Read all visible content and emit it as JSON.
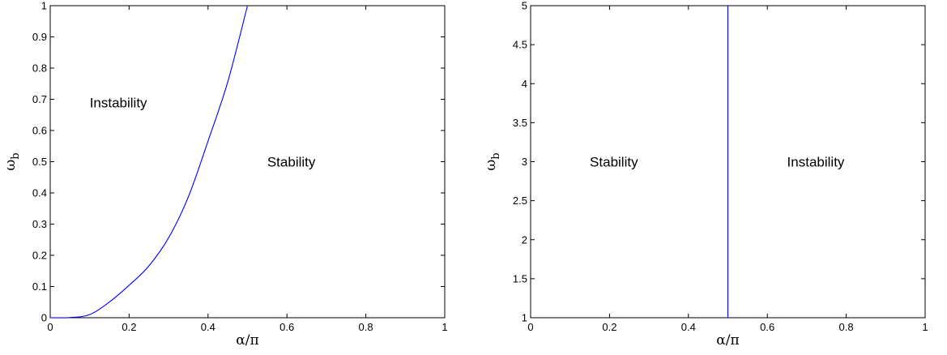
{
  "chart_data": [
    {
      "type": "line",
      "xlabel": "α/π",
      "ylabel_main": "ω",
      "ylabel_sub": "b",
      "xlim": [
        0,
        1
      ],
      "ylim": [
        0,
        1
      ],
      "xticks": [
        0,
        0.2,
        0.4,
        0.6,
        0.8,
        1
      ],
      "xtick_labels": [
        "0",
        "0.2",
        "0.4",
        "0.6",
        "0.8",
        "1"
      ],
      "yticks": [
        0,
        0.1,
        0.2,
        0.3,
        0.4,
        0.5,
        0.6,
        0.7,
        0.8,
        0.9,
        1
      ],
      "ytick_labels": [
        "0",
        "0.1",
        "0.2",
        "0.3",
        "0.4",
        "0.5",
        "0.6",
        "0.7",
        "0.8",
        "0.9",
        "1"
      ],
      "grid": false,
      "series": [
        {
          "color": "#0000ff",
          "x": [
            0,
            0.05,
            0.1,
            0.15,
            0.2,
            0.25,
            0.3,
            0.35,
            0.4,
            0.45,
            0.5
          ],
          "y": [
            0,
            0.0006,
            0.01,
            0.0505,
            0.104,
            0.166,
            0.256,
            0.387,
            0.566,
            0.756,
            1.0
          ]
        }
      ],
      "annotations": [
        {
          "text": "Instability",
          "x": 0.1,
          "y": 0.69
        },
        {
          "text": "Stability",
          "x": 0.55,
          "y": 0.5
        }
      ]
    },
    {
      "type": "line",
      "xlabel": "α/π",
      "ylabel_main": "ω",
      "ylabel_sub": "b",
      "xlim": [
        0,
        1
      ],
      "ylim": [
        1,
        5
      ],
      "xticks": [
        0,
        0.2,
        0.4,
        0.6,
        0.8,
        1
      ],
      "xtick_labels": [
        "0",
        "0.2",
        "0.4",
        "0.6",
        "0.8",
        "1"
      ],
      "yticks": [
        1,
        1.5,
        2,
        2.5,
        3,
        3.5,
        4,
        4.5,
        5
      ],
      "ytick_labels": [
        "1",
        "1.5",
        "2",
        "2.5",
        "3",
        "3.5",
        "4",
        "4.5",
        "5"
      ],
      "grid": false,
      "series": [
        {
          "color": "#0000ff",
          "x": [
            0.5,
            0.5
          ],
          "y": [
            1,
            5
          ]
        }
      ],
      "annotations": [
        {
          "text": "Stability",
          "x": 0.15,
          "y": 3.0
        },
        {
          "text": "Instability",
          "x": 0.65,
          "y": 3.0
        }
      ]
    }
  ]
}
